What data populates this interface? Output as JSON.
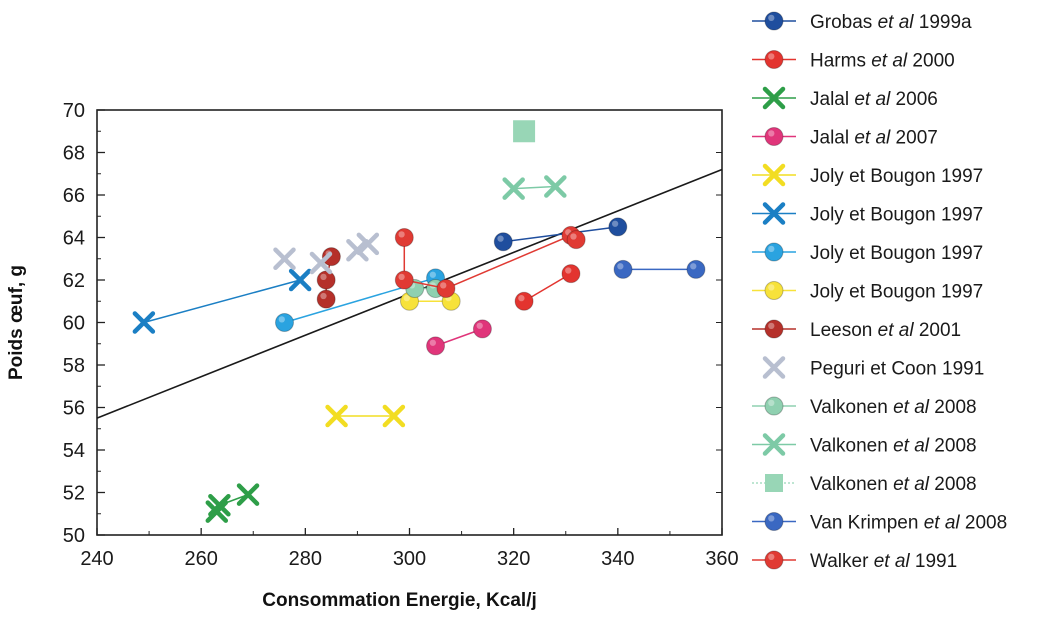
{
  "chart_data": {
    "type": "scatter",
    "title": "",
    "xlabel": "Consommation Energie, Kcal/j",
    "ylabel": "Poids œuf, g",
    "xlim": [
      240,
      360
    ],
    "ylim": [
      50,
      70
    ],
    "xticks": [
      240,
      260,
      280,
      300,
      320,
      340,
      360
    ],
    "yticks": [
      50,
      52,
      54,
      56,
      58,
      60,
      62,
      64,
      66,
      68,
      70
    ],
    "grid": false,
    "legend_position": "right",
    "regression_line": {
      "x": [
        240,
        360
      ],
      "y": [
        55.5,
        67.2
      ],
      "color": "#1a1a1a"
    },
    "series": [
      {
        "name": "Grobas et al 1999a",
        "legend": [
          "Grobas ",
          "et al",
          " 1999a"
        ],
        "marker": "circle",
        "color": "#1f4e9e",
        "line": true,
        "points": [
          [
            318,
            63.8
          ],
          [
            340,
            64.5
          ]
        ]
      },
      {
        "name": "Harms et al 2000",
        "legend": [
          "Harms ",
          "et al",
          " 2000"
        ],
        "marker": "circle",
        "color": "#e3342f",
        "line": true,
        "points": [
          [
            322,
            61.0
          ],
          [
            331,
            62.3
          ]
        ]
      },
      {
        "name": "Jalal et al 2006",
        "legend": [
          "Jalal ",
          "et al",
          " 2006"
        ],
        "marker": "x",
        "color": "#2e9e48",
        "line": true,
        "points": [
          [
            263,
            51.1
          ],
          [
            263.5,
            51.4
          ],
          [
            269,
            51.9
          ]
        ]
      },
      {
        "name": "Jalal et al 2007",
        "legend": [
          "Jalal ",
          "et al",
          " 2007"
        ],
        "marker": "circle",
        "color": "#e0357a",
        "line": true,
        "points": [
          [
            305,
            58.9
          ],
          [
            314,
            59.7
          ]
        ]
      },
      {
        "name": "Joly et Bougon 1997",
        "legend": [
          "Joly et Bougon 1997",
          "",
          ""
        ],
        "marker": "x",
        "color": "#f2dd22",
        "line": true,
        "points": [
          [
            286,
            55.6
          ],
          [
            297,
            55.6
          ]
        ]
      },
      {
        "name": "Joly et Bougon 1997",
        "legend": [
          "Joly et Bougon 1997",
          "",
          ""
        ],
        "marker": "x",
        "color": "#1b7fc4",
        "line": true,
        "points": [
          [
            249,
            60.0
          ],
          [
            279,
            62.0
          ]
        ]
      },
      {
        "name": "Joly et Bougon 1997",
        "legend": [
          "Joly et Bougon 1997",
          "",
          ""
        ],
        "marker": "circle",
        "color": "#2aa3e0",
        "line": true,
        "points": [
          [
            276,
            60.0
          ],
          [
            305,
            62.1
          ]
        ]
      },
      {
        "name": "Joly et Bougon 1997",
        "legend": [
          "Joly et Bougon 1997",
          "",
          ""
        ],
        "marker": "circle",
        "color": "#f7e23a",
        "line": true,
        "points": [
          [
            300,
            61.0
          ],
          [
            308,
            61.0
          ]
        ]
      },
      {
        "name": "Leeson et al 2001",
        "legend": [
          "Leeson ",
          "et al",
          " 2001"
        ],
        "marker": "circle",
        "color": "#b5302a",
        "line": true,
        "points": [
          [
            284,
            61.1
          ],
          [
            284,
            62.0
          ],
          [
            285,
            63.1
          ]
        ]
      },
      {
        "name": "Peguri et Coon 1991",
        "legend": [
          "Peguri et Coon 1991",
          "",
          ""
        ],
        "marker": "x",
        "color": "#b8bfd0",
        "line": false,
        "points": [
          [
            276,
            63.0
          ],
          [
            283,
            62.8
          ],
          [
            290,
            63.4
          ],
          [
            292,
            63.7
          ]
        ]
      },
      {
        "name": "Valkonen et al 2008",
        "legend": [
          "Valkonen ",
          "et al",
          " 2008"
        ],
        "marker": "circle",
        "color": "#8fd0b0",
        "line": true,
        "points": [
          [
            301,
            61.6
          ],
          [
            305,
            61.6
          ]
        ]
      },
      {
        "name": "Valkonen et al 2008",
        "legend": [
          "Valkonen ",
          "et al",
          " 2008"
        ],
        "marker": "x",
        "color": "#7dcaa6",
        "line": true,
        "points": [
          [
            320,
            66.3
          ],
          [
            328,
            66.4
          ]
        ]
      },
      {
        "name": "Valkonen et al 2008",
        "legend": [
          "Valkonen ",
          "et al",
          " 2008"
        ],
        "marker": "square",
        "color": "#98d6b6",
        "line": false,
        "points": [
          [
            322,
            69.0
          ]
        ]
      },
      {
        "name": "Van Krimpen et al 2008",
        "legend": [
          "Van Krimpen ",
          "et al",
          " 2008"
        ],
        "marker": "circle",
        "color": "#3a68c2",
        "line": true,
        "points": [
          [
            341,
            62.5
          ],
          [
            355,
            62.5
          ]
        ]
      },
      {
        "name": "Walker et al 1991",
        "legend": [
          "Walker ",
          "et al",
          " 1991"
        ],
        "marker": "circle",
        "color": "#e03a33",
        "line": true,
        "points": [
          [
            299,
            64.0
          ],
          [
            299,
            62.0
          ],
          [
            307,
            61.6
          ],
          [
            331,
            64.1
          ],
          [
            332,
            63.9
          ]
        ]
      }
    ]
  }
}
